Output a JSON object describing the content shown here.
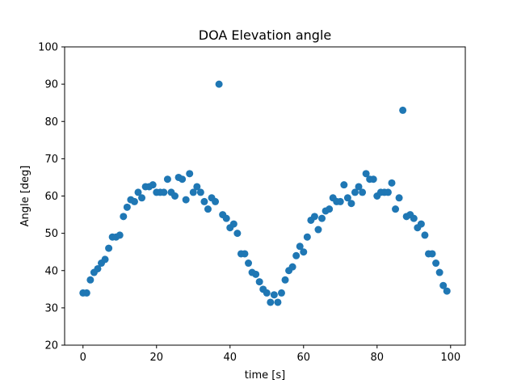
{
  "chart_data": {
    "type": "scatter",
    "title": "DOA Elevation angle",
    "xlabel": "time [s]",
    "ylabel": "Angle [deg]",
    "xlim": [
      -5,
      104
    ],
    "ylim": [
      20,
      100
    ],
    "xticks": [
      0,
      20,
      40,
      60,
      80,
      100
    ],
    "yticks": [
      20,
      30,
      40,
      50,
      60,
      70,
      80,
      90,
      100
    ],
    "grid": false,
    "color": "#1f77b4",
    "series": [
      {
        "x": [
          0,
          1,
          2,
          3,
          4,
          5,
          6,
          7,
          8,
          9,
          10,
          11,
          12,
          13,
          14,
          15,
          16,
          17,
          18,
          19,
          20,
          21,
          22,
          23,
          24,
          25,
          26,
          27,
          28,
          29,
          30,
          31,
          32,
          33,
          34,
          35,
          36,
          37,
          38,
          39,
          40,
          41,
          42,
          43,
          44,
          45,
          46,
          47,
          48,
          49,
          50,
          51,
          52,
          53,
          54,
          55,
          56,
          57,
          58,
          59,
          60,
          61,
          62,
          63,
          64,
          65,
          66,
          67,
          68,
          69,
          70,
          71,
          72,
          73,
          74,
          75,
          76,
          77,
          78,
          79,
          80,
          81,
          82,
          83,
          84,
          85,
          86,
          87,
          88,
          89,
          90,
          91,
          92,
          93,
          94,
          95,
          96,
          97,
          98,
          99
        ],
        "y": [
          34,
          34,
          37.5,
          39.5,
          40.5,
          42,
          43,
          46,
          49,
          49,
          49.5,
          54.5,
          57,
          59,
          58.5,
          61,
          59.5,
          62.5,
          62.5,
          63,
          61,
          61,
          61,
          64.5,
          61,
          60,
          65,
          64.5,
          59,
          66,
          61,
          62.5,
          61,
          58.5,
          56.5,
          59.5,
          58.5,
          90,
          55,
          54,
          51.5,
          52.5,
          50,
          44.5,
          44.5,
          42,
          39.5,
          39,
          37,
          35,
          34,
          31.5,
          33.5,
          31.5,
          34,
          37.5,
          40,
          41,
          44,
          46.5,
          45,
          49,
          53.5,
          54.5,
          51,
          54,
          56,
          56.5,
          59.5,
          58.5,
          58.5,
          63,
          59.5,
          58,
          61,
          62.5,
          61,
          66,
          64.5,
          64.5,
          60,
          61,
          61,
          61,
          63.5,
          56.5,
          59.5,
          83,
          54.5,
          55,
          54,
          51.5,
          52.5,
          49.5,
          44.5,
          44.5,
          42,
          39.5,
          36,
          34.5
        ]
      }
    ]
  }
}
